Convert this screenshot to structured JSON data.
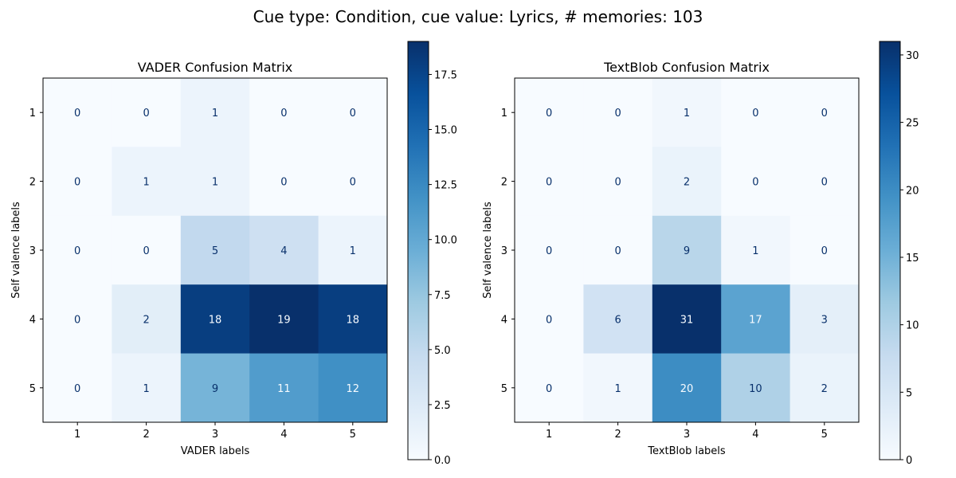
{
  "figure": {
    "suptitle": "Cue type: Condition, cue value: Lyrics, # memories: 103"
  },
  "chart_data": [
    {
      "type": "heatmap",
      "title": "VADER Confusion Matrix",
      "xlabel": "VADER labels",
      "ylabel": "Self valence labels",
      "x_categories": [
        "1",
        "2",
        "3",
        "4",
        "5"
      ],
      "y_categories": [
        "1",
        "2",
        "3",
        "4",
        "5"
      ],
      "values": [
        [
          0,
          0,
          1,
          0,
          0
        ],
        [
          0,
          1,
          1,
          0,
          0
        ],
        [
          0,
          0,
          5,
          4,
          1
        ],
        [
          0,
          2,
          18,
          19,
          18
        ],
        [
          0,
          1,
          9,
          11,
          12
        ]
      ],
      "colorscale": "Blues",
      "colorbar_range": [
        0,
        19
      ],
      "colorbar_ticks": [
        "0.0",
        "2.5",
        "5.0",
        "7.5",
        "10.0",
        "12.5",
        "15.0",
        "17.5"
      ]
    },
    {
      "type": "heatmap",
      "title": "TextBlob Confusion Matrix",
      "xlabel": "TextBlob labels",
      "ylabel": "Self valence labels",
      "x_categories": [
        "1",
        "2",
        "3",
        "4",
        "5"
      ],
      "y_categories": [
        "1",
        "2",
        "3",
        "4",
        "5"
      ],
      "values": [
        [
          0,
          0,
          1,
          0,
          0
        ],
        [
          0,
          0,
          2,
          0,
          0
        ],
        [
          0,
          0,
          9,
          1,
          0
        ],
        [
          0,
          6,
          31,
          17,
          3
        ],
        [
          0,
          1,
          20,
          10,
          2
        ]
      ],
      "colorscale": "Blues",
      "colorbar_range": [
        0,
        31
      ],
      "colorbar_ticks": [
        "0",
        "5",
        "10",
        "15",
        "20",
        "25",
        "30"
      ]
    }
  ]
}
